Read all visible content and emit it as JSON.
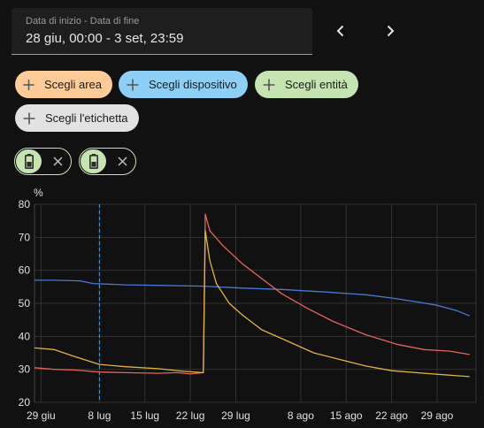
{
  "date_range": {
    "label": "Data di inizio - Data di fine",
    "value": "28 giu, 00:00 - 3 set, 23:59"
  },
  "nav": {
    "prev_icon": "chevron-left-icon",
    "next_icon": "chevron-right-icon"
  },
  "chips": {
    "area": {
      "label": "Scegli area",
      "color": "#ffcc99"
    },
    "device": {
      "label": "Scegli dispositivo",
      "color": "#8ecff6"
    },
    "entity": {
      "label": "Scegli entità",
      "color": "#c6e3b2"
    },
    "label": {
      "label": "Scegli l'etichetta",
      "color": "#e2e2e2"
    }
  },
  "selected_entities": [
    {
      "icon": "battery-icon",
      "remove_icon": "close-icon"
    },
    {
      "icon": "battery-icon",
      "remove_icon": "close-icon"
    }
  ],
  "chart_data": {
    "type": "line",
    "ylabel": "%",
    "ylim": [
      20,
      80
    ],
    "yticks": [
      20,
      30,
      40,
      50,
      60,
      70,
      80
    ],
    "x_domain": [
      "2024-06-28",
      "2024-09-03"
    ],
    "xticks": [
      {
        "date": "2024-06-29",
        "label": "29 giu"
      },
      {
        "date": "2024-07-08",
        "label": "8 lug"
      },
      {
        "date": "2024-07-15",
        "label": "15 lug"
      },
      {
        "date": "2024-07-22",
        "label": "22 lug"
      },
      {
        "date": "2024-07-29",
        "label": "29 lug"
      },
      {
        "date": "2024-08-08",
        "label": "8 ago"
      },
      {
        "date": "2024-08-15",
        "label": "15 ago"
      },
      {
        "date": "2024-08-22",
        "label": "22 ago"
      },
      {
        "date": "2024-08-29",
        "label": "29 ago"
      }
    ],
    "grid": true,
    "marker_date": "2024-07-08",
    "series": [
      {
        "color": "#4a78d4",
        "points": [
          [
            "2024-06-28",
            57
          ],
          [
            "2024-07-01",
            57
          ],
          [
            "2024-07-05",
            56.8
          ],
          [
            "2024-07-07",
            56
          ],
          [
            "2024-07-12",
            55.6
          ],
          [
            "2024-07-18",
            55.4
          ],
          [
            "2024-07-24",
            55.2
          ],
          [
            "2024-07-30",
            54.6
          ],
          [
            "2024-08-05",
            54.2
          ],
          [
            "2024-08-12",
            53.4
          ],
          [
            "2024-08-18",
            52.6
          ],
          [
            "2024-08-22",
            51.6
          ],
          [
            "2024-08-26",
            50.4
          ],
          [
            "2024-08-29",
            49.4
          ],
          [
            "2024-09-01",
            47.8
          ],
          [
            "2024-09-03",
            46.2
          ]
        ]
      },
      {
        "color": "#e5645a",
        "points": [
          [
            "2024-06-28",
            30.5
          ],
          [
            "2024-07-01",
            30
          ],
          [
            "2024-07-04",
            29.8
          ],
          [
            "2024-07-08",
            29.2
          ],
          [
            "2024-07-12",
            29
          ],
          [
            "2024-07-17",
            28.8
          ],
          [
            "2024-07-20",
            29
          ],
          [
            "2024-07-22",
            28.6
          ],
          [
            "2024-07-24",
            29
          ],
          [
            "2024-07-24.3",
            77
          ],
          [
            "2024-07-25",
            72
          ],
          [
            "2024-07-27",
            67.5
          ],
          [
            "2024-07-30",
            62
          ],
          [
            "2024-08-02",
            57.5
          ],
          [
            "2024-08-05",
            53
          ],
          [
            "2024-08-09",
            48.5
          ],
          [
            "2024-08-13",
            44.5
          ],
          [
            "2024-08-18",
            40.5
          ],
          [
            "2024-08-23",
            37.5
          ],
          [
            "2024-08-27",
            36
          ],
          [
            "2024-08-31",
            35.5
          ],
          [
            "2024-09-03",
            34.5
          ]
        ]
      },
      {
        "color": "#e3b33f",
        "points": [
          [
            "2024-06-28",
            36.5
          ],
          [
            "2024-07-01",
            36
          ],
          [
            "2024-07-04",
            34
          ],
          [
            "2024-07-08",
            31.5
          ],
          [
            "2024-07-12",
            30.8
          ],
          [
            "2024-07-17",
            30.2
          ],
          [
            "2024-07-21",
            29.4
          ],
          [
            "2024-07-24",
            29
          ],
          [
            "2024-07-24.3",
            72
          ],
          [
            "2024-07-25",
            63
          ],
          [
            "2024-07-26",
            56
          ],
          [
            "2024-07-28",
            50
          ],
          [
            "2024-07-30",
            46.5
          ],
          [
            "2024-08-02",
            42
          ],
          [
            "2024-08-06",
            38.5
          ],
          [
            "2024-08-10",
            35
          ],
          [
            "2024-08-14",
            33
          ],
          [
            "2024-08-18",
            31
          ],
          [
            "2024-08-22",
            29.6
          ],
          [
            "2024-08-27",
            28.8
          ],
          [
            "2024-09-03",
            27.8
          ]
        ]
      }
    ]
  }
}
